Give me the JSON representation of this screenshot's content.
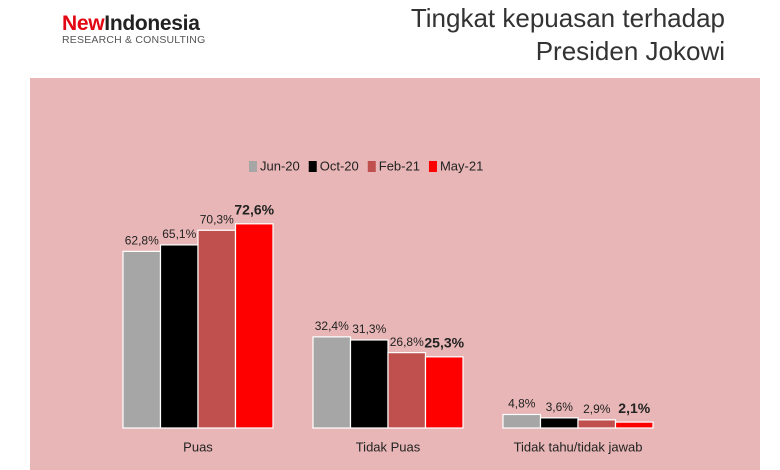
{
  "logo": {
    "brand_first": "New",
    "brand_rest": "Indonesia",
    "tagline": "RESEARCH & CONSULTING"
  },
  "chart_data": {
    "type": "bar",
    "title": "Tingkat kepuasan terhadap Presiden Jokowi",
    "categories": [
      "Puas",
      "Tidak Puas",
      "Tidak tahu/tidak jawab"
    ],
    "series": [
      {
        "name": "Jun-20",
        "color": "#a6a6a6",
        "values": [
          62.8,
          32.4,
          4.8
        ],
        "value_labels": [
          "62,8%",
          "32,4%",
          "4,8%"
        ]
      },
      {
        "name": "Oct-20",
        "color": "#000000",
        "values": [
          65.1,
          31.3,
          3.6
        ],
        "value_labels": [
          "65,1%",
          "31,3%",
          "3,6%"
        ]
      },
      {
        "name": "Feb-21",
        "color": "#c0504d",
        "values": [
          70.3,
          26.8,
          2.9
        ],
        "value_labels": [
          "70,3%",
          "26,8%",
          "2,9%"
        ]
      },
      {
        "name": "May-21",
        "color": "#ff0000",
        "values": [
          72.6,
          25.3,
          2.1
        ],
        "value_labels": [
          "72,6%",
          "25,3%",
          "2,1%"
        ]
      }
    ],
    "ylim": [
      0,
      80
    ],
    "legend": "top"
  }
}
